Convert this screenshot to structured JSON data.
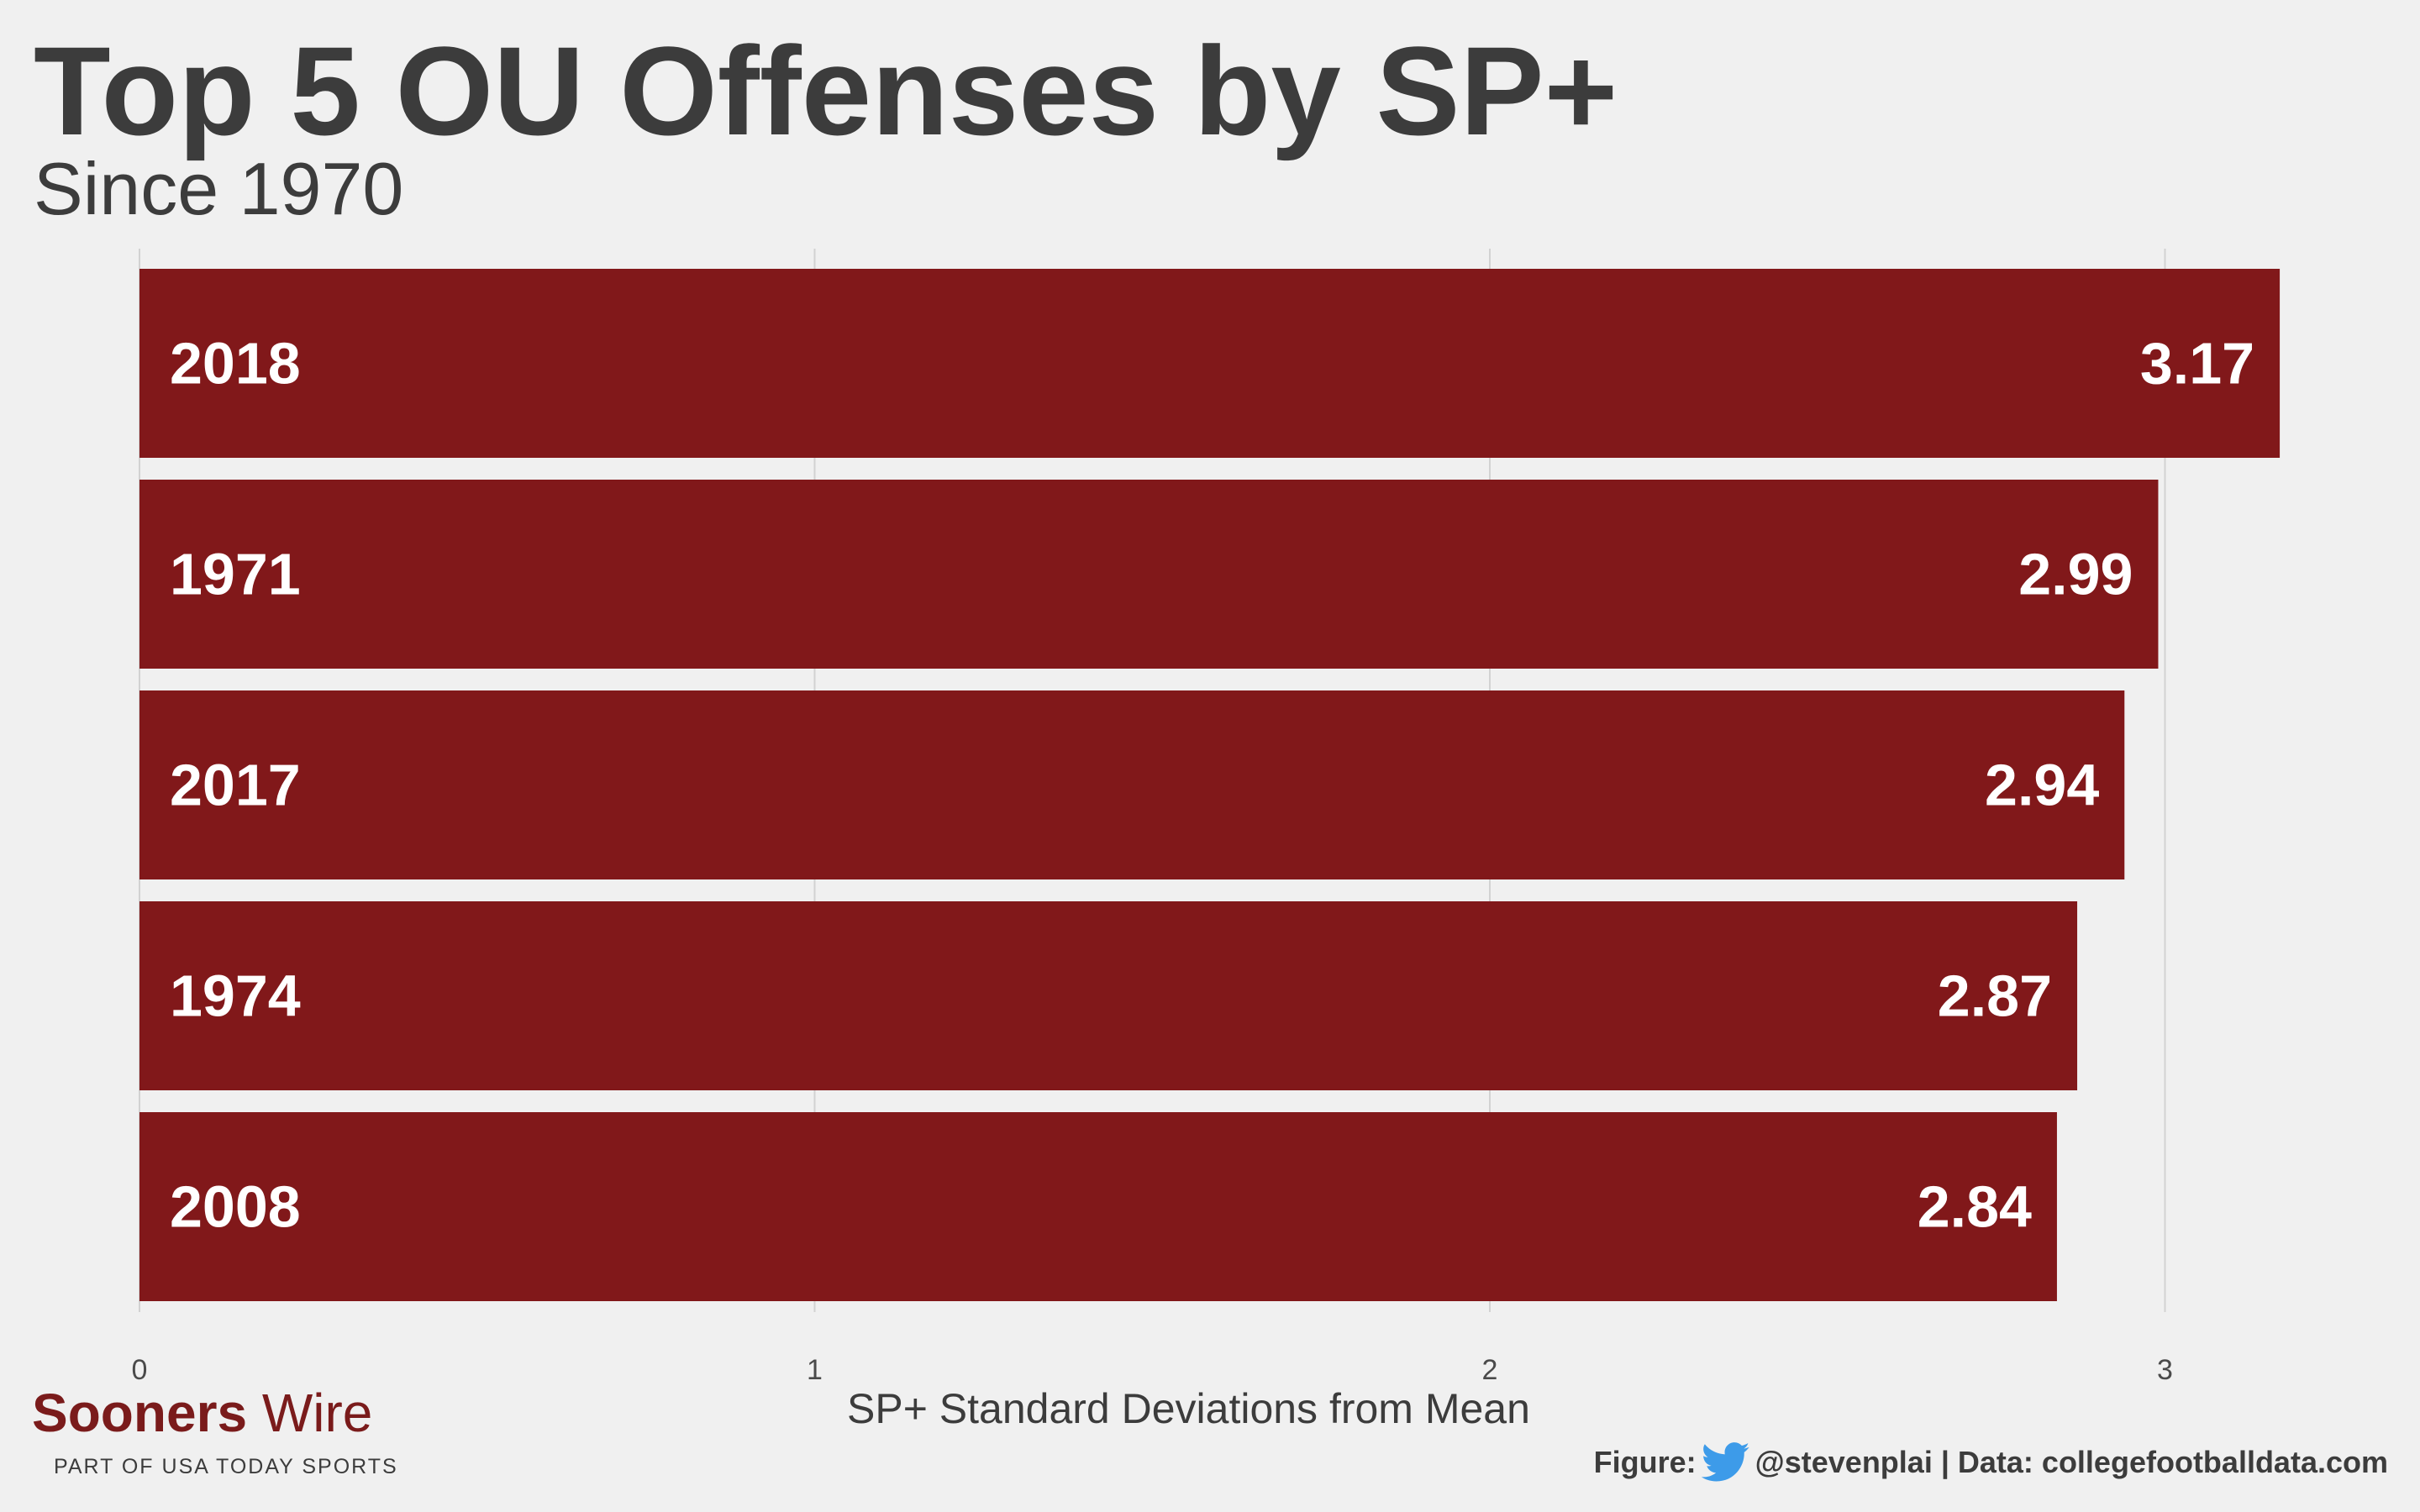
{
  "title": "Top 5 OU Offenses by SP+",
  "subtitle": "Since 1970",
  "brand": {
    "name_bold": "Sooners",
    "name_light": " Wire",
    "tagline": "PART OF USA TODAY SPORTS",
    "color": "#7a1b1b"
  },
  "credit": {
    "prefix": "Figure:",
    "icon": "twitter-icon",
    "text": "@stevenplai | Data: collegefootballdata.com"
  },
  "chart_data": {
    "type": "bar",
    "orientation": "horizontal",
    "categories": [
      "2018",
      "1971",
      "2017",
      "1974",
      "2008"
    ],
    "values": [
      3.17,
      2.99,
      2.94,
      2.87,
      2.84
    ],
    "value_labels": [
      "3.17",
      "2.99",
      "2.94",
      "2.87",
      "2.84"
    ],
    "xlabel": "SP+ Standard Deviations from Mean",
    "xlim": [
      0,
      3.3
    ],
    "xticks": [
      0,
      1,
      2,
      3
    ],
    "xtick_labels": [
      "0",
      "1",
      "2",
      "3"
    ],
    "grid": true,
    "bar_color": "#81181a",
    "label_color": "#ffffff"
  }
}
